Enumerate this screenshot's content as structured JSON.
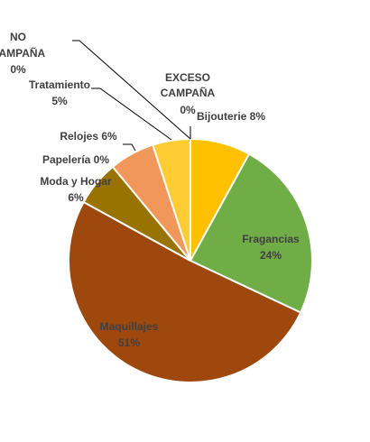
{
  "chart_data": {
    "type": "pie",
    "title": "",
    "start_angle_deg": 0,
    "direction": "clockwise",
    "slices": [
      {
        "label": "Bijouterie",
        "value": 8,
        "value_label": "8%",
        "color": "#FFC000"
      },
      {
        "label": "Fragancias",
        "value": 24,
        "value_label": "24%",
        "color": "#70AD47"
      },
      {
        "label": "Maquillajes",
        "value": 51,
        "value_label": "51%",
        "color": "#9E480E"
      },
      {
        "label": "Moda y Hogar",
        "value": 6,
        "value_label": "6%",
        "color": "#997300"
      },
      {
        "label": "Papelería",
        "value": 0,
        "value_label": "0%",
        "color": "#636363"
      },
      {
        "label": "Relojes",
        "value": 6,
        "value_label": "6%",
        "color": "#F1975A"
      },
      {
        "label": "Tratamiento",
        "value": 5,
        "value_label": "5%",
        "color": "#FFCD33"
      },
      {
        "label": "NO CAMPAÑA",
        "value": 0,
        "value_label": "0%",
        "color": "#A9D18E"
      },
      {
        "label": "EXCESO CAMPAÑA",
        "value": 0,
        "value_label": "0%",
        "color": "#5B9BD5"
      }
    ],
    "legend": "none",
    "slice_border_color": "#FFFFFF",
    "label_color": "#404040",
    "leader_line_color": "#000000"
  }
}
